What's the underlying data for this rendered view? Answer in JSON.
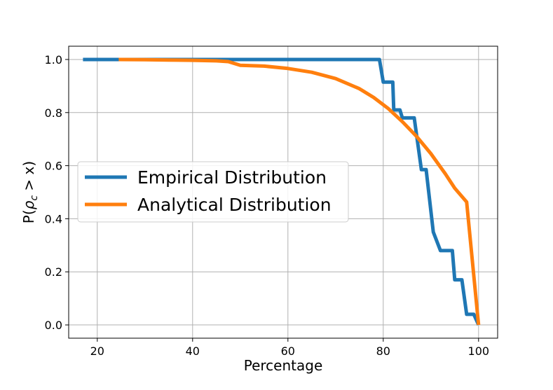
{
  "chart_data": {
    "type": "line",
    "xlabel": "Percentage",
    "ylabel_prefix": "P(",
    "ylabel_symbol": "ρ",
    "ylabel_sub": "c",
    "ylabel_suffix": " > x)",
    "xlim": [
      14,
      104
    ],
    "ylim": [
      -0.05,
      1.05
    ],
    "xticks": [
      20,
      40,
      60,
      80,
      100
    ],
    "yticks": [
      0.0,
      0.2,
      0.4,
      0.6,
      0.8,
      1.0
    ],
    "grid": true,
    "legend_position": "center-left",
    "series": [
      {
        "name": "Empirical Distribution",
        "color": "#1f77b4",
        "x": [
          17.0,
          79.2,
          80.0,
          82.0,
          82.2,
          83.5,
          84.0,
          85.0,
          86.5,
          88.0,
          89.0,
          90.5,
          92.0,
          94.5,
          95.0,
          96.5,
          97.5,
          99.0,
          100.0
        ],
        "y": [
          1.0,
          1.0,
          0.915,
          0.915,
          0.81,
          0.81,
          0.78,
          0.78,
          0.78,
          0.585,
          0.585,
          0.35,
          0.28,
          0.28,
          0.17,
          0.17,
          0.04,
          0.04,
          0.0
        ]
      },
      {
        "name": "Analytical Distribution",
        "color": "#ff7f0e",
        "x": [
          24.5,
          30,
          35,
          40,
          45,
          47.5,
          50,
          55,
          60,
          65,
          70,
          75,
          78,
          81,
          84,
          87,
          90,
          93,
          95,
          97.5,
          100
        ],
        "y": [
          1.0,
          0.999,
          0.998,
          0.997,
          0.995,
          0.992,
          0.978,
          0.975,
          0.966,
          0.952,
          0.928,
          0.89,
          0.857,
          0.816,
          0.766,
          0.71,
          0.645,
          0.57,
          0.515,
          0.463,
          0.0
        ]
      }
    ]
  }
}
